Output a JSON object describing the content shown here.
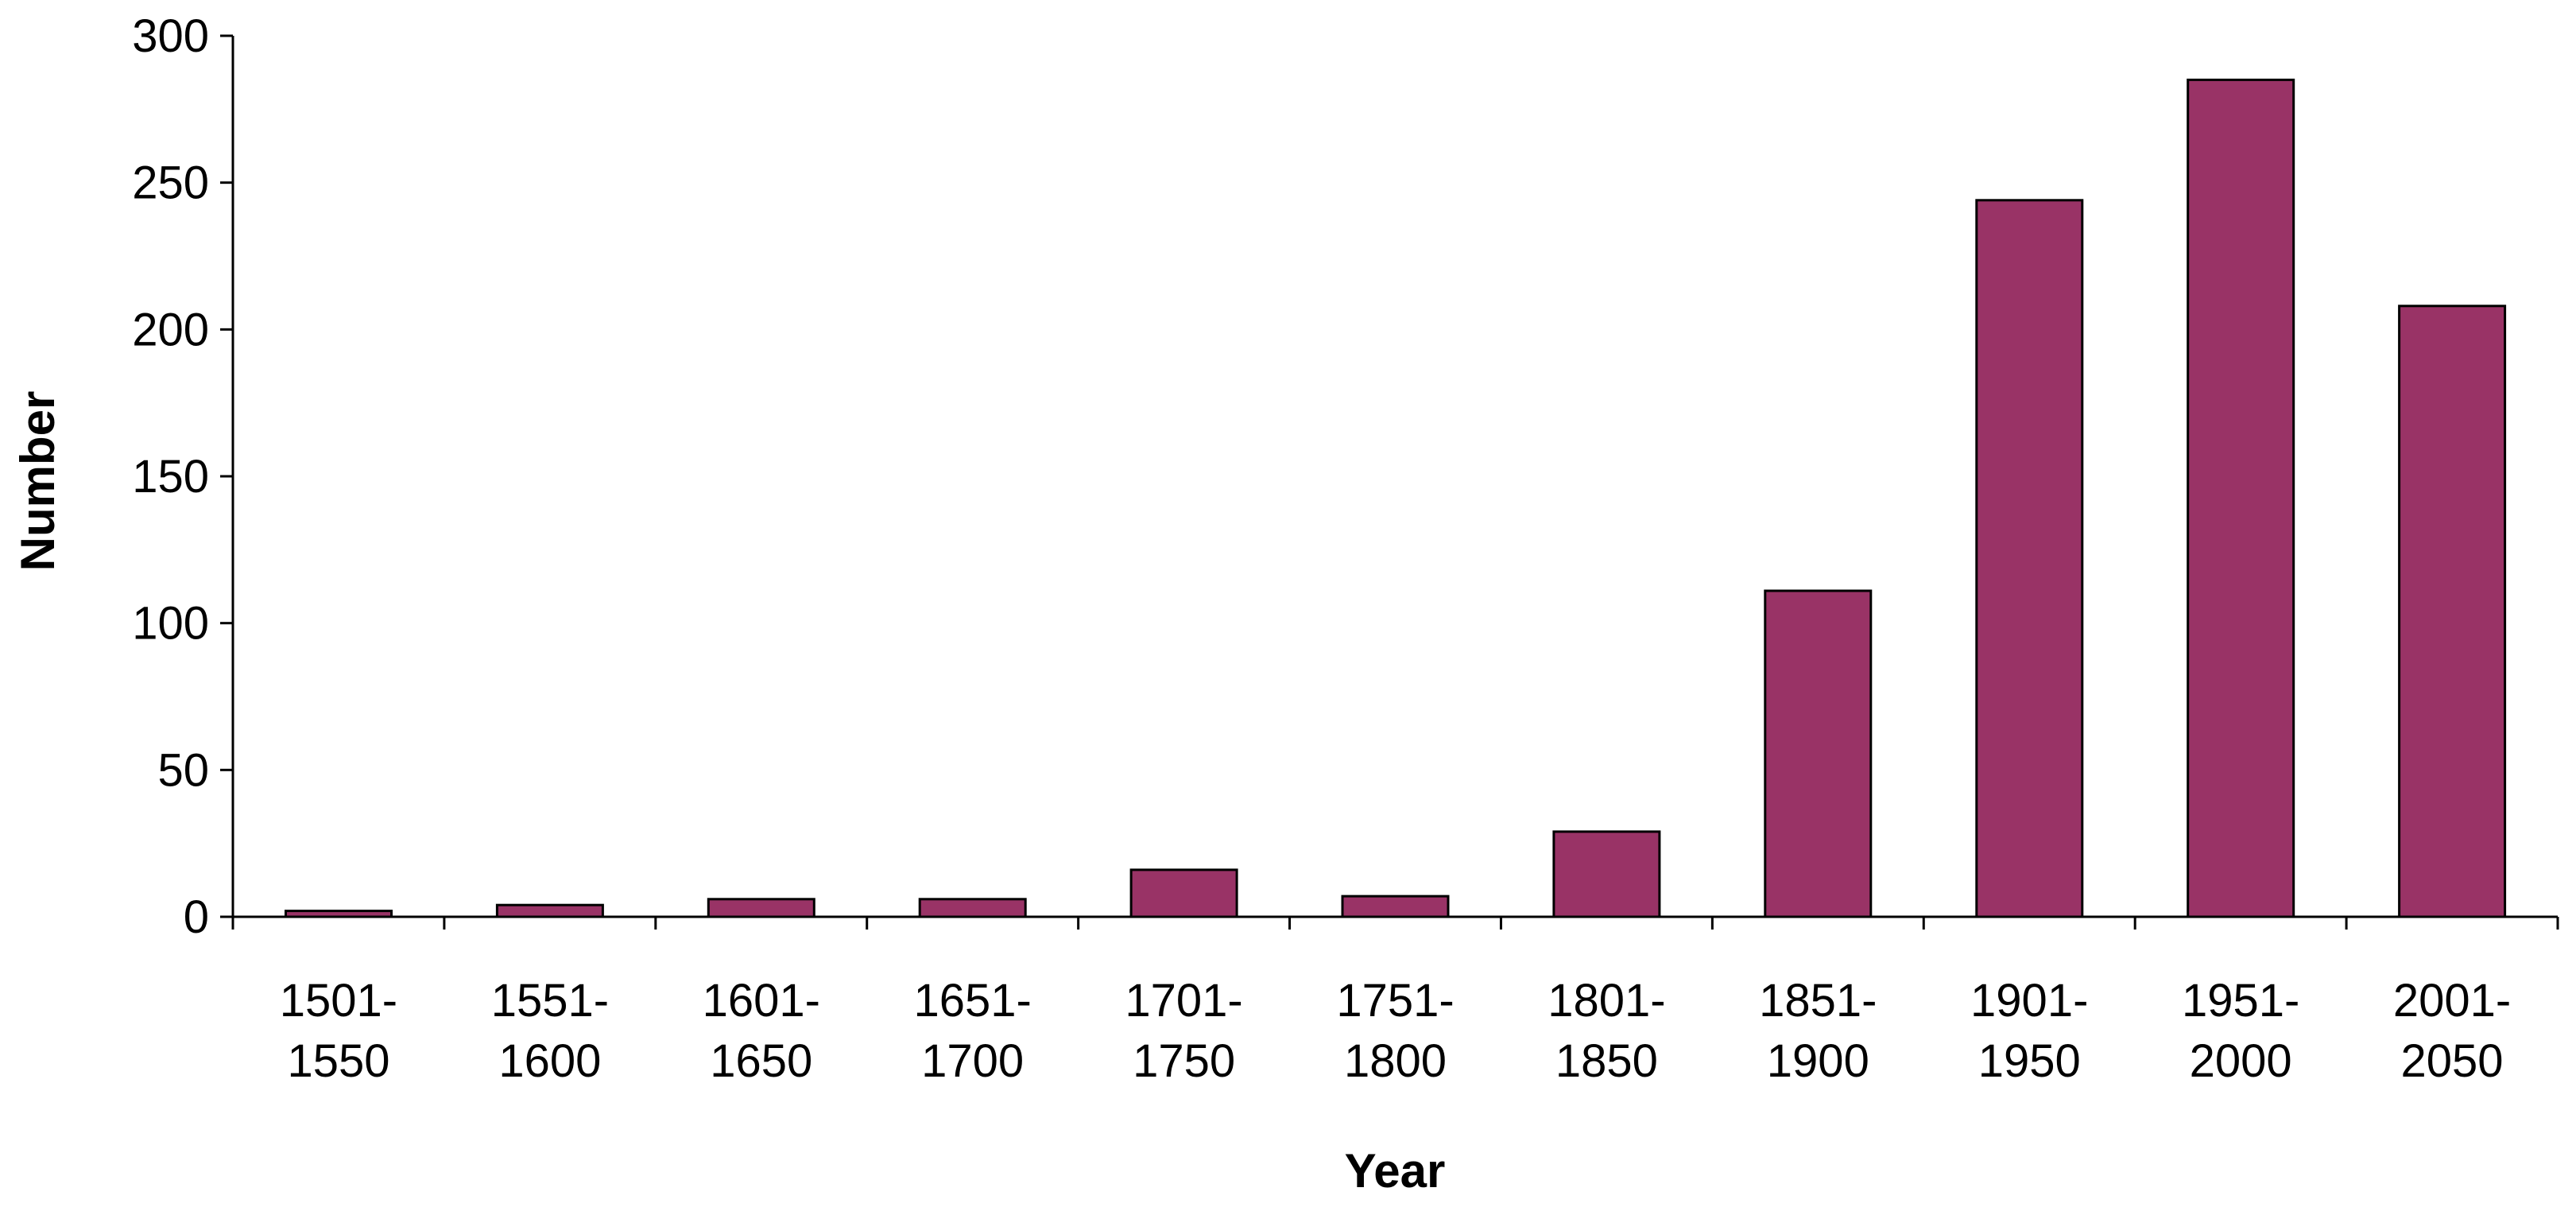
{
  "chart_data": {
    "type": "bar",
    "title": "",
    "xlabel": "Year",
    "ylabel": "Number",
    "categories": [
      [
        "1501-",
        "1550"
      ],
      [
        "1551-",
        "1600"
      ],
      [
        "1601-",
        "1650"
      ],
      [
        "1651-",
        "1700"
      ],
      [
        "1701-",
        "1750"
      ],
      [
        "1751-",
        "1800"
      ],
      [
        "1801-",
        "1850"
      ],
      [
        "1851-",
        "1900"
      ],
      [
        "1901-",
        "1950"
      ],
      [
        "1951-",
        "2000"
      ],
      [
        "2001-",
        "2050"
      ]
    ],
    "values": [
      2,
      4,
      6,
      6,
      16,
      7,
      29,
      111,
      244,
      285,
      208
    ],
    "ylim": [
      0,
      300
    ],
    "yticks": [
      0,
      50,
      100,
      150,
      200,
      250,
      300
    ],
    "bar_color": "#993366",
    "grid": false,
    "legend": "none"
  }
}
